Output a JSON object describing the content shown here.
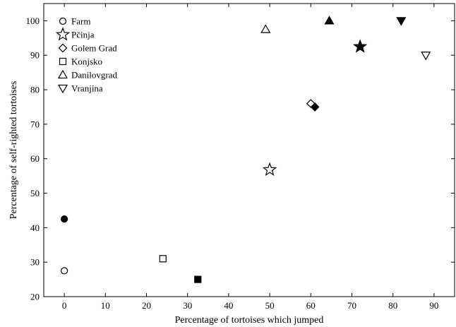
{
  "chart_data": {
    "type": "scatter",
    "title": "",
    "xlabel": "Percentage of tortoises which jumped",
    "ylabel": "Percentage of self-righted tortoises",
    "xlim": [
      -5,
      95
    ],
    "ylim": [
      20,
      105
    ],
    "x_ticks": [
      0,
      10,
      20,
      30,
      40,
      50,
      60,
      70,
      80,
      90
    ],
    "y_ticks": [
      20,
      30,
      40,
      50,
      60,
      70,
      80,
      90,
      100
    ],
    "grid": false,
    "legend_position": "top-left",
    "fill_encoding": "open marker and filled marker plotted for each population",
    "series": [
      {
        "name": "Farm",
        "marker": "circle",
        "points": [
          {
            "x": 0,
            "y": 27.5,
            "filled": false
          },
          {
            "x": 0,
            "y": 42.5,
            "filled": true
          }
        ]
      },
      {
        "name": "Pčinja",
        "marker": "star",
        "points": [
          {
            "x": 50,
            "y": 56.8,
            "filled": false
          },
          {
            "x": 72,
            "y": 92.5,
            "filled": true
          }
        ]
      },
      {
        "name": "Golem Grad",
        "marker": "diamond",
        "points": [
          {
            "x": 60,
            "y": 76,
            "filled": false
          },
          {
            "x": 61,
            "y": 75,
            "filled": true
          }
        ]
      },
      {
        "name": "Konjsko",
        "marker": "square",
        "points": [
          {
            "x": 24,
            "y": 31,
            "filled": false
          },
          {
            "x": 32.5,
            "y": 25,
            "filled": true
          }
        ]
      },
      {
        "name": "Danilovgrad",
        "marker": "triangle-up",
        "points": [
          {
            "x": 49,
            "y": 97.5,
            "filled": false
          },
          {
            "x": 64.5,
            "y": 100,
            "filled": true
          }
        ]
      },
      {
        "name": "Vranjina",
        "marker": "triangle-down",
        "points": [
          {
            "x": 88,
            "y": 90,
            "filled": false
          },
          {
            "x": 82,
            "y": 100,
            "filled": true
          }
        ]
      }
    ]
  }
}
